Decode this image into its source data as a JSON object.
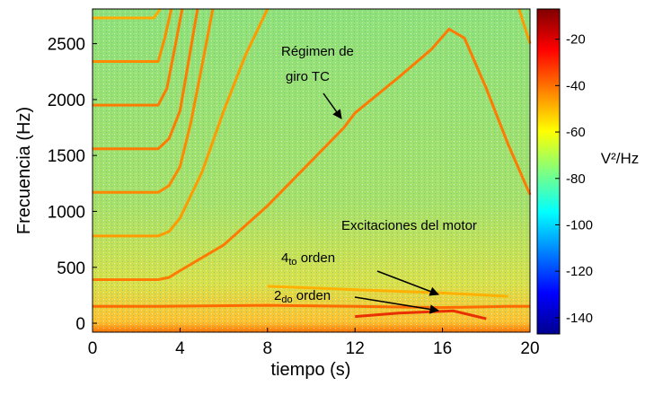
{
  "chart_data": {
    "type": "spectrogram",
    "xlabel": "tiempo (s)",
    "ylabel": "Frecuencia (Hz)",
    "xlim": [
      0,
      20
    ],
    "xticks": [
      0,
      4,
      8,
      12,
      16,
      20
    ],
    "ylim": [
      -80,
      2810
    ],
    "yticks": [
      0,
      500,
      1000,
      1500,
      2000,
      2500
    ],
    "colorbar": {
      "label": "V²/Hz",
      "lim": [
        -147,
        -7
      ],
      "ticks": [
        -20,
        -40,
        -60,
        -80,
        -100,
        -120,
        -140
      ]
    },
    "lines": [
      {
        "color": "#ff7a00",
        "x": [
          0,
          3,
          3.5,
          4,
          6,
          8,
          10,
          11.5,
          12,
          14,
          15.5,
          16.3,
          17,
          18,
          19,
          20
        ],
        "y": [
          390,
          390,
          410,
          470,
          700,
          1050,
          1450,
          1750,
          1880,
          2200,
          2450,
          2630,
          2550,
          2100,
          1600,
          1150
        ]
      },
      {
        "color": "#ff9a00",
        "x": [
          0,
          3,
          3.5,
          4,
          5,
          6,
          7,
          8
        ],
        "y": [
          780,
          780,
          820,
          940,
          1350,
          1900,
          2400,
          2810
        ]
      },
      {
        "color": "#ff8800",
        "x": [
          0,
          3,
          3.5,
          4,
          4.5,
          5,
          5.5
        ],
        "y": [
          1170,
          1170,
          1230,
          1400,
          1800,
          2300,
          2810
        ]
      },
      {
        "color": "#ff7a00",
        "x": [
          0,
          3,
          3.5,
          4,
          4.4,
          4.8
        ],
        "y": [
          1560,
          1560,
          1650,
          1900,
          2350,
          2810
        ]
      },
      {
        "color": "#ff7a00",
        "x": [
          0,
          3,
          3.4,
          3.8,
          4.1
        ],
        "y": [
          1950,
          1950,
          2100,
          2500,
          2810
        ]
      },
      {
        "color": "#ff8a00",
        "x": [
          0,
          3,
          3.3,
          3.6
        ],
        "y": [
          2340,
          2340,
          2550,
          2810
        ]
      },
      {
        "color": "#ffaa00",
        "x": [
          0,
          2.8,
          3.1
        ],
        "y": [
          2730,
          2730,
          2810
        ]
      },
      {
        "color": "#ff6a00",
        "x": [
          0,
          3,
          8,
          12,
          16,
          19,
          20
        ],
        "y": [
          150,
          150,
          160,
          150,
          140,
          150,
          150
        ]
      },
      {
        "color": "#e83000",
        "x": [
          12,
          14,
          16.5,
          18
        ],
        "y": [
          60,
          90,
          110,
          40
        ]
      },
      {
        "color": "#ffb000",
        "x": [
          8,
          12,
          16,
          19
        ],
        "y": [
          330,
          300,
          270,
          240
        ]
      },
      {
        "color": "#ff9a00",
        "x": [
          19.5,
          20
        ],
        "y": [
          2810,
          2500
        ]
      }
    ],
    "annotations": {
      "regimen": [
        "Régimen  de",
        "giro TC"
      ],
      "excitaciones": "Excitaciones del motor",
      "cuarto": [
        "4",
        "to",
        " orden"
      ],
      "segundo": [
        "2",
        "do",
        " orden"
      ]
    }
  }
}
